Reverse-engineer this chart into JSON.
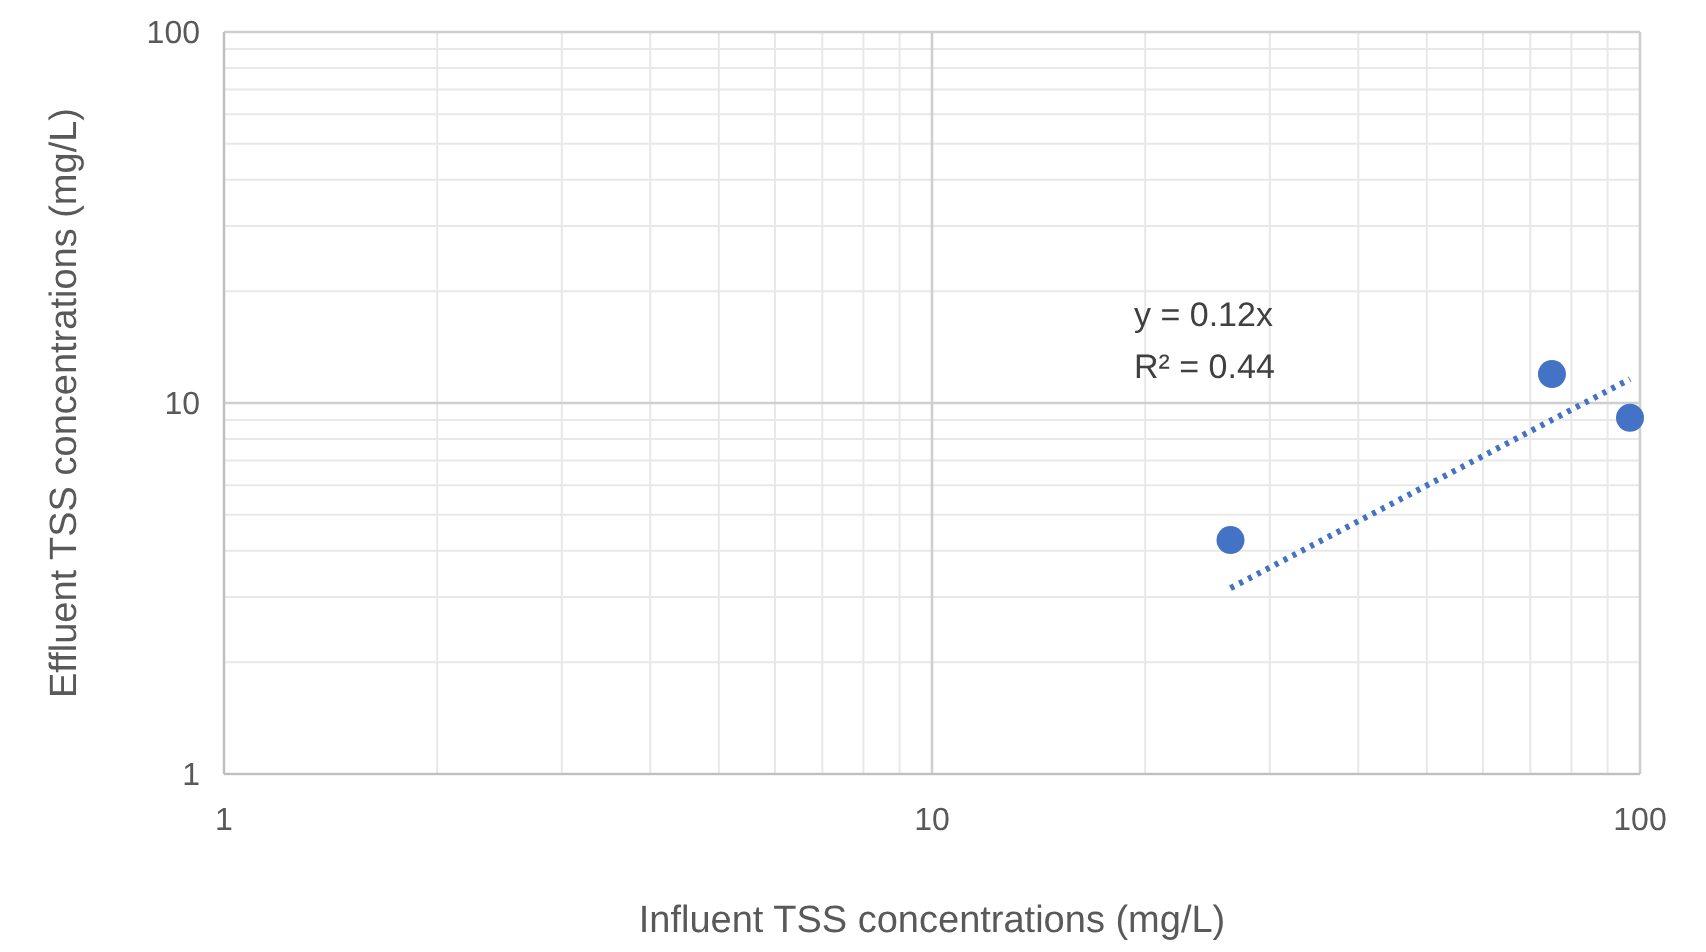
{
  "chart_data": {
    "type": "scatter",
    "xlabel": "Influent TSS concentrations (mg/L)",
    "ylabel": "Effluent TSS concentrations (mg/L)",
    "log": "xy",
    "xlim": [
      1,
      100
    ],
    "ylim": [
      1,
      100
    ],
    "xticks": [
      1,
      10,
      100
    ],
    "yticks": [
      1,
      10,
      100
    ],
    "grid": true,
    "series": [
      {
        "color": "#4472c4",
        "marker": "circle",
        "x": [
          26.4,
          75.1,
          96.8
        ],
        "values": [
          4.27,
          11.97,
          9.12
        ]
      },
      {
        "type": "line",
        "color": "#4472c4",
        "marker": "none",
        "line_style": "dotted",
        "x": [
          26.4,
          96.8
        ],
        "values": [
          3.17,
          11.6
        ]
      }
    ],
    "annotations": [
      "y = 0.12x",
      "R² = 0.44"
    ]
  }
}
